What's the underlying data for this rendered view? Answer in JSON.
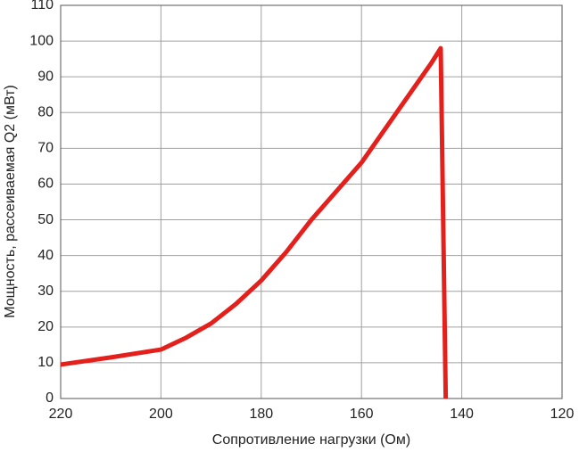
{
  "chart_data": {
    "type": "line",
    "x_label": "Сопротивление нагрузки (Ом)",
    "y_label": "Мощность, рассеиваемая Q2 (мВт)",
    "x": [
      220,
      210,
      200,
      195,
      190,
      185,
      180,
      175,
      170,
      165,
      160,
      155,
      150,
      146,
      144.2,
      143.2
    ],
    "series": [
      {
        "name": "Q2",
        "color": "#e3201b",
        "values": [
          9.5,
          11.5,
          13.7,
          17,
          21,
          26.5,
          33,
          41,
          50,
          58,
          66,
          76,
          86,
          94,
          98,
          0
        ]
      }
    ],
    "xlim": [
      220,
      120
    ],
    "xticks": [
      220,
      200,
      180,
      160,
      140,
      120
    ],
    "ylim": [
      0,
      110
    ],
    "yticks": [
      0,
      10,
      20,
      30,
      40,
      50,
      60,
      70,
      80,
      90,
      100,
      110
    ],
    "grid": true
  }
}
